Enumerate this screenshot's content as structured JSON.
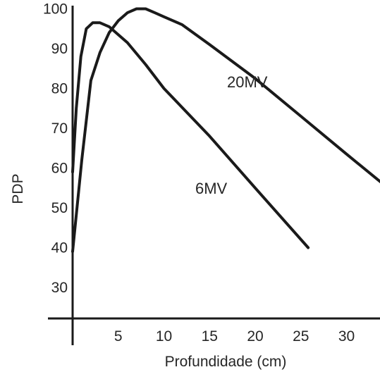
{
  "chart_data": {
    "type": "line",
    "title": "",
    "xlabel": "Profundidade (cm)",
    "ylabel": "PDP",
    "x_ticks": [
      5,
      10,
      15,
      20,
      25,
      30
    ],
    "y_ticks": [
      30,
      40,
      50,
      60,
      70,
      80,
      90,
      100
    ],
    "xlim": [
      0,
      34
    ],
    "ylim": [
      22,
      108
    ],
    "grid": false,
    "legend": "none",
    "series": [
      {
        "name": "6MV",
        "color": "#1a1a1a",
        "x": [
          0,
          0.4,
          0.9,
          1.5,
          2.2,
          3.0,
          4.0,
          5.0,
          6.0,
          8.0,
          10.0,
          15.0,
          20.0,
          25.8
        ],
        "y": [
          59,
          75,
          88,
          95,
          96.5,
          96.5,
          95.5,
          93.5,
          91.5,
          86,
          80,
          68,
          55,
          40
        ]
      },
      {
        "name": "20MV",
        "color": "#1a1a1a",
        "x": [
          0,
          1.0,
          2.0,
          3.0,
          4.0,
          5.0,
          6.0,
          7.0,
          8.0,
          9.0,
          10.0,
          12.0,
          15.0,
          20.0,
          25.0,
          30.0,
          34.0
        ],
        "y": [
          39,
          62,
          82,
          89,
          94,
          97,
          99,
          100,
          100,
          99,
          98,
          96,
          91,
          82.5,
          73,
          63.5,
          56
        ]
      }
    ]
  }
}
